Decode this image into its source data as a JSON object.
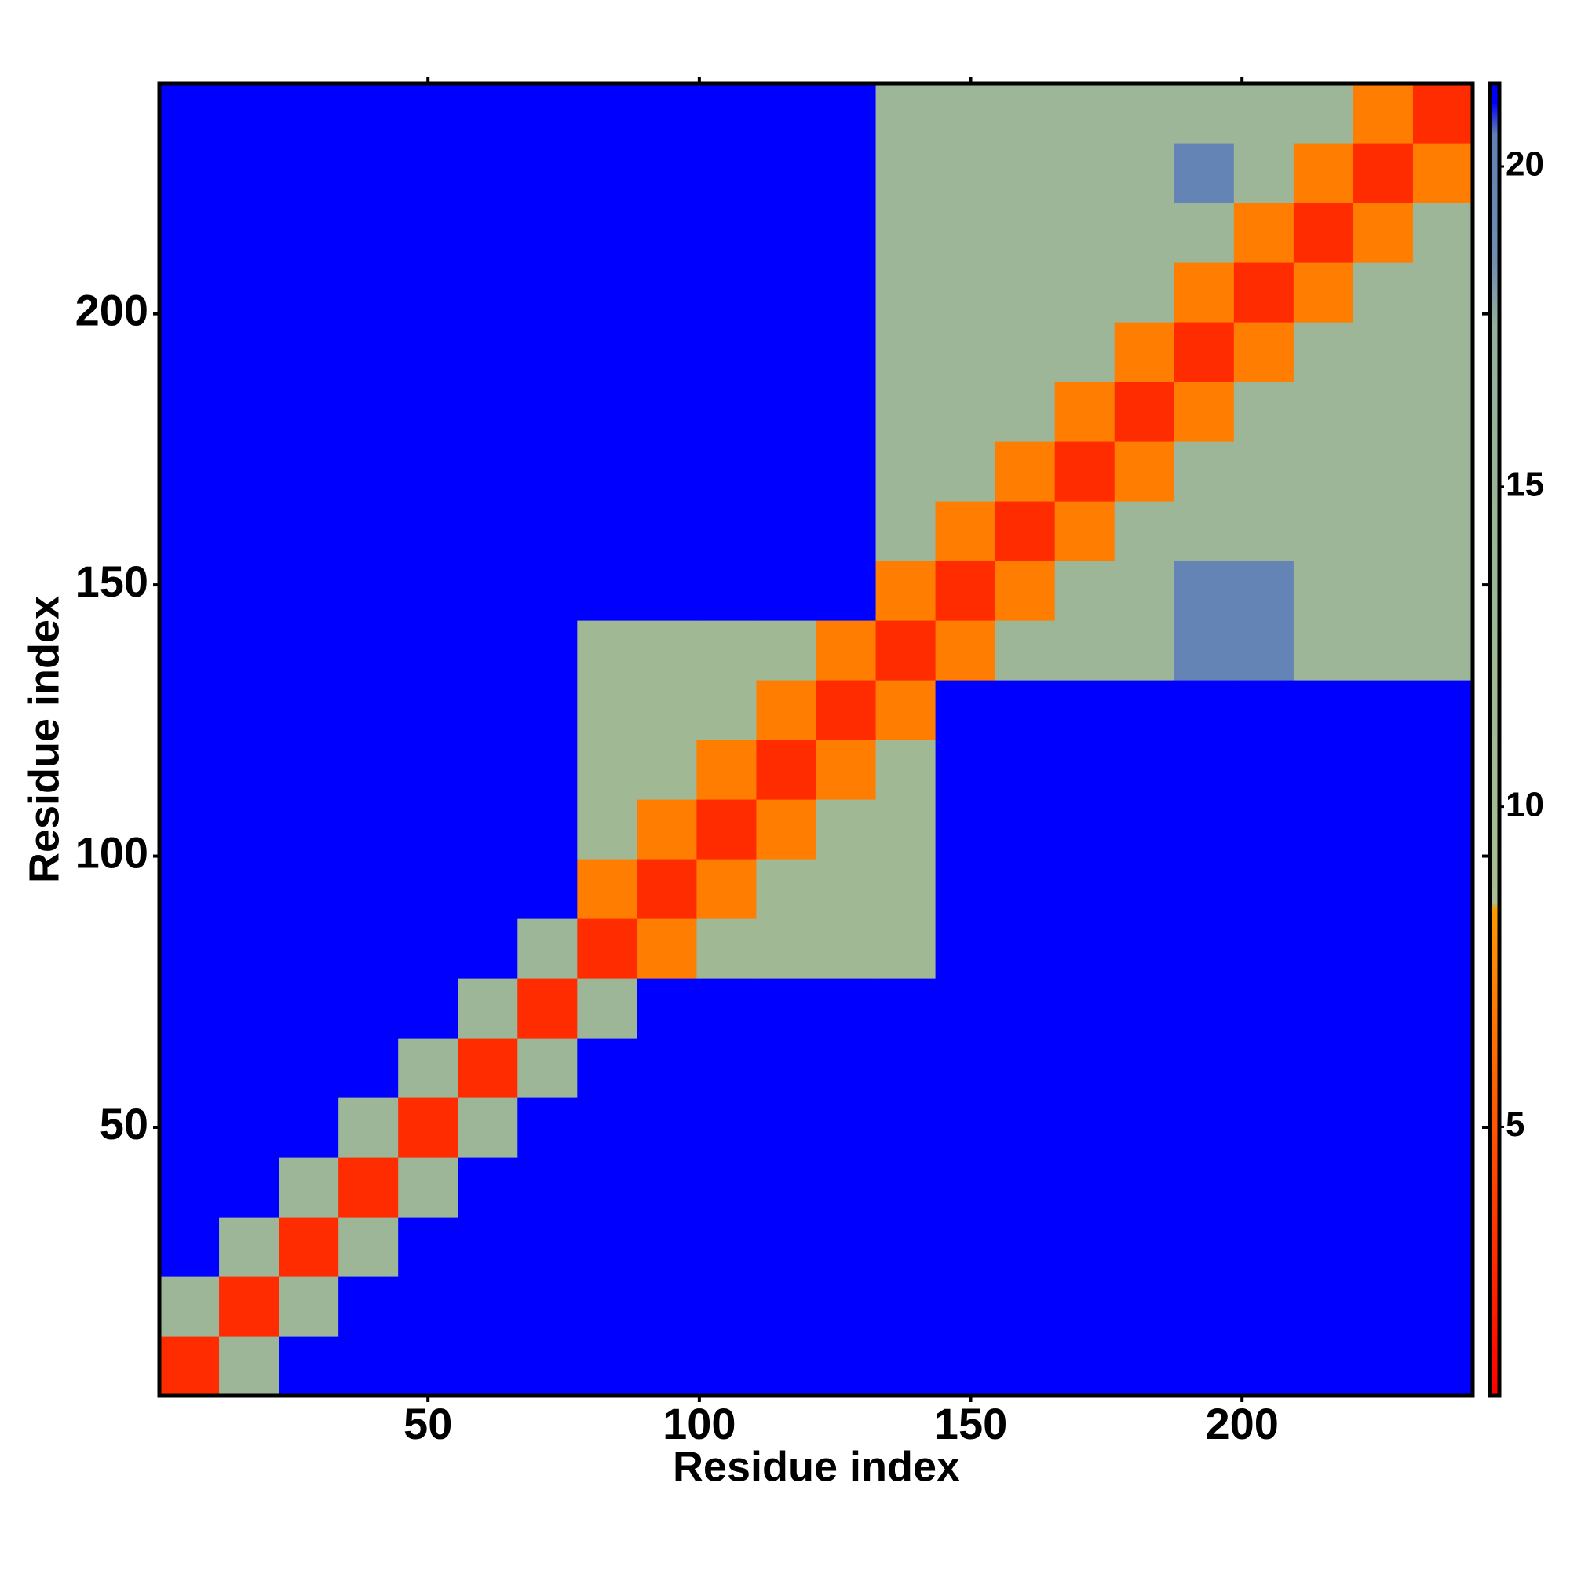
{
  "chart_data": {
    "type": "heatmap",
    "x_label": "Residue index",
    "y_label": "Residue index",
    "xlim": [
      0.5,
      242.5
    ],
    "ylim": [
      0.5,
      242.5
    ],
    "xticks": [
      50,
      100,
      150,
      200
    ],
    "yticks": [
      50,
      100,
      150,
      200
    ],
    "clim": [
      0.8,
      21.3
    ],
    "cticks": [
      5,
      10,
      15,
      20
    ],
    "colorscale": [
      [
        0.8,
        "#ff0000"
      ],
      [
        8.4,
        "#ff9900"
      ],
      [
        8.5,
        "#a9bf8f"
      ],
      [
        17.5,
        "#93b09c"
      ],
      [
        18.5,
        "#6f8fb0"
      ],
      [
        20.5,
        "#5f80b5"
      ],
      [
        21,
        "#0000ff"
      ],
      [
        21.3,
        "#0000ff"
      ]
    ],
    "z": [
      [
        3,
        14,
        21,
        21,
        21,
        21,
        21,
        21,
        21,
        21,
        21,
        21,
        21,
        21,
        21,
        21,
        21,
        21,
        21,
        21,
        21,
        21
      ],
      [
        14,
        3,
        14,
        21,
        21,
        21,
        21,
        21,
        21,
        21,
        21,
        21,
        21,
        21,
        21,
        21,
        21,
        21,
        21,
        21,
        21,
        21
      ],
      [
        21,
        14,
        3,
        14,
        21,
        21,
        21,
        21,
        21,
        21,
        21,
        21,
        21,
        21,
        21,
        21,
        21,
        21,
        21,
        21,
        21,
        21
      ],
      [
        21,
        21,
        14,
        3,
        14,
        21,
        21,
        21,
        21,
        21,
        21,
        21,
        21,
        21,
        21,
        21,
        21,
        21,
        21,
        21,
        21,
        21
      ],
      [
        21,
        21,
        21,
        14,
        3,
        14,
        21,
        21,
        21,
        21,
        21,
        21,
        21,
        21,
        21,
        21,
        21,
        21,
        21,
        21,
        21,
        21
      ],
      [
        21,
        21,
        21,
        21,
        14,
        3,
        14,
        21,
        21,
        21,
        21,
        21,
        21,
        21,
        21,
        21,
        21,
        21,
        21,
        21,
        21,
        21
      ],
      [
        21,
        21,
        21,
        21,
        21,
        14,
        3,
        14,
        21,
        21,
        21,
        21,
        21,
        21,
        21,
        21,
        21,
        21,
        21,
        21,
        21,
        21
      ],
      [
        21,
        21,
        21,
        21,
        21,
        21,
        14,
        3,
        7,
        12,
        12,
        12,
        12,
        21,
        21,
        21,
        21,
        21,
        21,
        21,
        21,
        21
      ],
      [
        21,
        21,
        21,
        21,
        21,
        21,
        21,
        7,
        3,
        7,
        12,
        12,
        12,
        21,
        21,
        21,
        21,
        21,
        21,
        21,
        21,
        21
      ],
      [
        21,
        21,
        21,
        21,
        21,
        21,
        21,
        12,
        7,
        3,
        7,
        12,
        12,
        21,
        21,
        21,
        21,
        21,
        21,
        21,
        21,
        21
      ],
      [
        21,
        21,
        21,
        21,
        21,
        21,
        21,
        12,
        12,
        7,
        3,
        7,
        12,
        21,
        21,
        21,
        21,
        21,
        21,
        21,
        21,
        21
      ],
      [
        21,
        21,
        21,
        21,
        21,
        21,
        21,
        12,
        12,
        12,
        7,
        3,
        7,
        21,
        21,
        21,
        21,
        21,
        21,
        21,
        21,
        21
      ],
      [
        21,
        21,
        21,
        21,
        21,
        21,
        21,
        12,
        12,
        12,
        12,
        7,
        3,
        7,
        14,
        14,
        14,
        20,
        20,
        14,
        14,
        14
      ],
      [
        21,
        21,
        21,
        21,
        21,
        21,
        21,
        21,
        21,
        21,
        21,
        21,
        7,
        3,
        7,
        14,
        14,
        20,
        20,
        14,
        14,
        14
      ],
      [
        21,
        21,
        21,
        21,
        21,
        21,
        21,
        21,
        21,
        21,
        21,
        21,
        14,
        7,
        3,
        7,
        14,
        14,
        14,
        14,
        14,
        14
      ],
      [
        21,
        21,
        21,
        21,
        21,
        21,
        21,
        21,
        21,
        21,
        21,
        21,
        14,
        14,
        7,
        3,
        7,
        14,
        14,
        14,
        14,
        14
      ],
      [
        21,
        21,
        21,
        21,
        21,
        21,
        21,
        21,
        21,
        21,
        21,
        21,
        14,
        14,
        14,
        7,
        3,
        7,
        14,
        14,
        14,
        14
      ],
      [
        21,
        21,
        21,
        21,
        21,
        21,
        21,
        21,
        21,
        21,
        21,
        21,
        14,
        14,
        14,
        14,
        7,
        3,
        7,
        14,
        14,
        14
      ],
      [
        21,
        21,
        21,
        21,
        21,
        21,
        21,
        21,
        21,
        21,
        21,
        21,
        14,
        14,
        14,
        14,
        14,
        7,
        3,
        7,
        14,
        14
      ],
      [
        21,
        21,
        21,
        21,
        21,
        21,
        21,
        21,
        21,
        21,
        21,
        21,
        14,
        14,
        14,
        14,
        14,
        14,
        7,
        3,
        7,
        14
      ],
      [
        21,
        21,
        21,
        21,
        21,
        21,
        21,
        21,
        21,
        21,
        21,
        21,
        14,
        14,
        14,
        14,
        14,
        20,
        14,
        7,
        3,
        7
      ],
      [
        21,
        21,
        21,
        21,
        21,
        21,
        21,
        21,
        21,
        21,
        21,
        21,
        14,
        14,
        14,
        14,
        14,
        14,
        14,
        14,
        7,
        3
      ]
    ]
  }
}
